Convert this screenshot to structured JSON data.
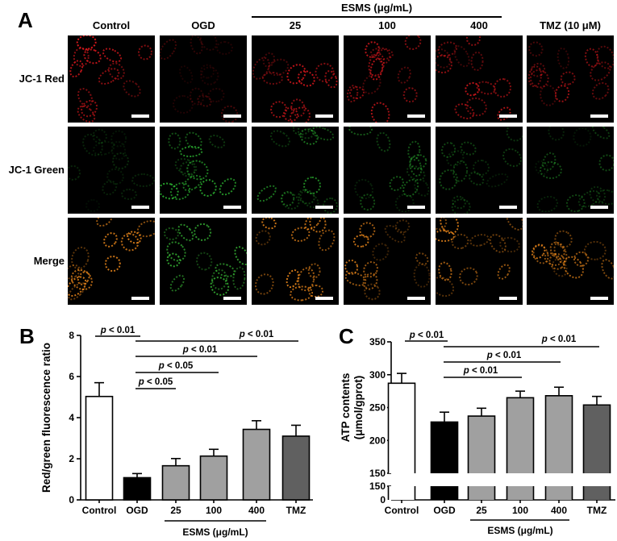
{
  "figure": {
    "panel_a": {
      "letter": "A",
      "group_label": "ESMS (μg/mL)",
      "columns": [
        "Control",
        "OGD",
        "25",
        "100",
        "400",
        "TMZ (10 μM)"
      ],
      "rows": [
        "JC-1 Red",
        "JC-1 Green",
        "Merge"
      ],
      "row_colors": {
        "JC-1 Red": "#e0191e",
        "JC-1 Green": "#2fbf35",
        "Merge": "#f08a1c"
      }
    },
    "panel_b": {
      "letter": "B"
    },
    "panel_c": {
      "letter": "C"
    }
  },
  "chart_data": [
    {
      "type": "bar",
      "panel": "B",
      "title": "",
      "categories": [
        "Control",
        "OGD",
        "25",
        "100",
        "400",
        "TMZ"
      ],
      "values": [
        5.03,
        1.08,
        1.66,
        2.13,
        3.43,
        3.1
      ],
      "errors": [
        0.67,
        0.2,
        0.35,
        0.33,
        0.42,
        0.53
      ],
      "bar_colors": [
        "#ffffff",
        "#000000",
        "#a0a0a0",
        "#a0a0a0",
        "#a0a0a0",
        "#606060"
      ],
      "xlabel": "ESMS (μg/mL)",
      "xlabel_spans": [
        "25",
        "100",
        "400"
      ],
      "ylabel": "Red/green fluorescence ratio",
      "ylim": [
        0,
        8
      ],
      "yticks": [
        0,
        2,
        4,
        6,
        8
      ],
      "grid": false,
      "significance": [
        {
          "from": "Control",
          "to": "OGD",
          "label": "p < 0.01"
        },
        {
          "from": "OGD",
          "to": "TMZ",
          "label": "p < 0.01"
        },
        {
          "from": "OGD",
          "to": "400",
          "label": "p < 0.01"
        },
        {
          "from": "OGD",
          "to": "100",
          "label": "p < 0.05"
        },
        {
          "from": "OGD",
          "to": "25",
          "label": "p < 0.05"
        }
      ]
    },
    {
      "type": "bar",
      "panel": "C",
      "title": "",
      "categories": [
        "Control",
        "OGD",
        "25",
        "100",
        "400",
        "TMZ"
      ],
      "values": [
        287,
        228,
        237,
        265,
        268,
        254
      ],
      "errors": [
        15,
        15,
        12,
        10,
        13,
        13
      ],
      "bar_colors": [
        "#ffffff",
        "#000000",
        "#a0a0a0",
        "#a0a0a0",
        "#a0a0a0",
        "#606060"
      ],
      "xlabel": "ESMS (μg/mL)",
      "xlabel_spans": [
        "25",
        "100",
        "400"
      ],
      "ylabel": "ATP contents (μmol/gprot)",
      "ylim": [
        0,
        350
      ],
      "axis_break": {
        "lower": [
          0,
          150
        ],
        "upper": [
          150,
          350
        ]
      },
      "yticks_upper": [
        150,
        200,
        250,
        300,
        350
      ],
      "yticks_lower": [
        0,
        150
      ],
      "grid": false,
      "significance": [
        {
          "from": "Control",
          "to": "OGD",
          "label": "p < 0.01"
        },
        {
          "from": "OGD",
          "to": "TMZ",
          "label": "p < 0.01"
        },
        {
          "from": "OGD",
          "to": "400",
          "label": "p < 0.01"
        },
        {
          "from": "OGD",
          "to": "100",
          "label": "p < 0.01"
        }
      ]
    }
  ]
}
